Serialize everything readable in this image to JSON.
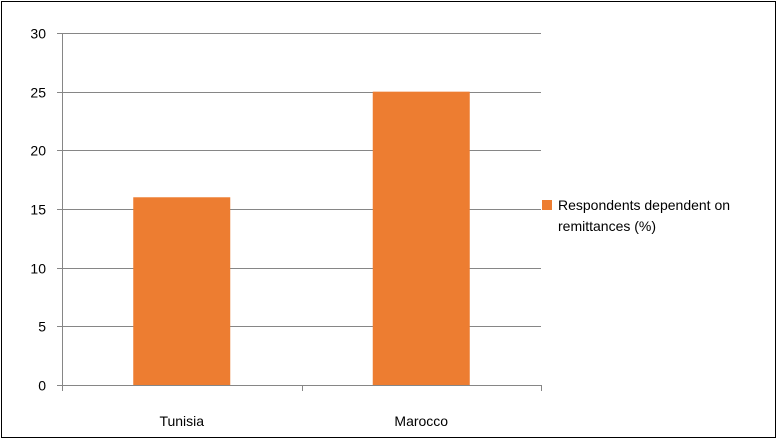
{
  "colors": {
    "bar": "#ED7D31",
    "gridline": "#868686",
    "axis": "#868686",
    "frame": "#000000",
    "text": "#000000"
  },
  "chart_data": {
    "type": "bar",
    "categories": [
      "Tunisia",
      "Marocco"
    ],
    "series": [
      {
        "name": "Respondents dependent on remittances (%)",
        "values": [
          16,
          25
        ]
      }
    ],
    "ylim": [
      0,
      30
    ],
    "yticks": [
      0,
      5,
      10,
      15,
      20,
      25,
      30
    ],
    "grid": true,
    "legend_position": "right"
  }
}
